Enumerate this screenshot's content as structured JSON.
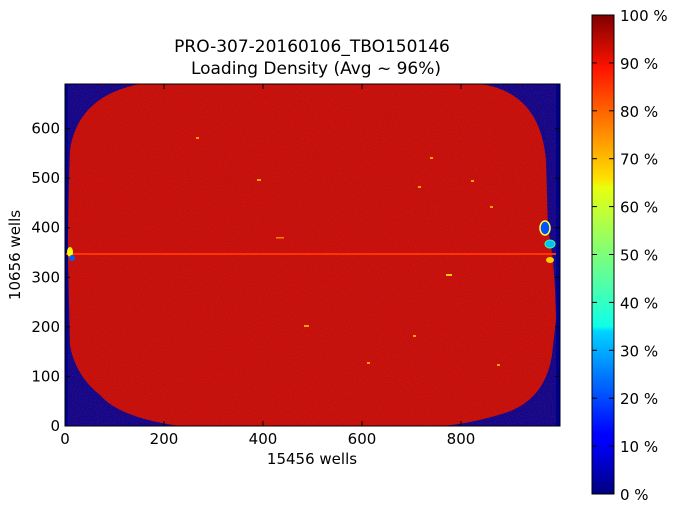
{
  "chart_data": {
    "type": "heatmap",
    "title": "PRO-307-20160106_TBO150146",
    "subtitle": "Loading Density (Avg ~ 96%)",
    "xlabel": "15456 wells",
    "ylabel": "10656 wells",
    "xlim": [
      0,
      1000
    ],
    "ylim": [
      0,
      690
    ],
    "x_ticks": [
      0,
      200,
      400,
      600,
      800
    ],
    "y_ticks": [
      0,
      100,
      200,
      300,
      400,
      500,
      600
    ],
    "colorbar": {
      "min": 0,
      "max": 100,
      "ticks": [
        "0 %",
        "10 %",
        "20 %",
        "30 %",
        "40 %",
        "50 %",
        "60 %",
        "70 %",
        "80 %",
        "90 %",
        "100 %"
      ],
      "colormap": "jet"
    },
    "background_value": 0,
    "chip_value": 96,
    "chip_extent": {
      "x": [
        5,
        990
      ],
      "y": [
        0,
        690
      ]
    },
    "stripe": {
      "y": 345,
      "value": 100
    },
    "colors": {
      "low": "#00008f",
      "high": "#b30000",
      "chip": "#c00a08",
      "stripe": "#ff3300"
    }
  }
}
